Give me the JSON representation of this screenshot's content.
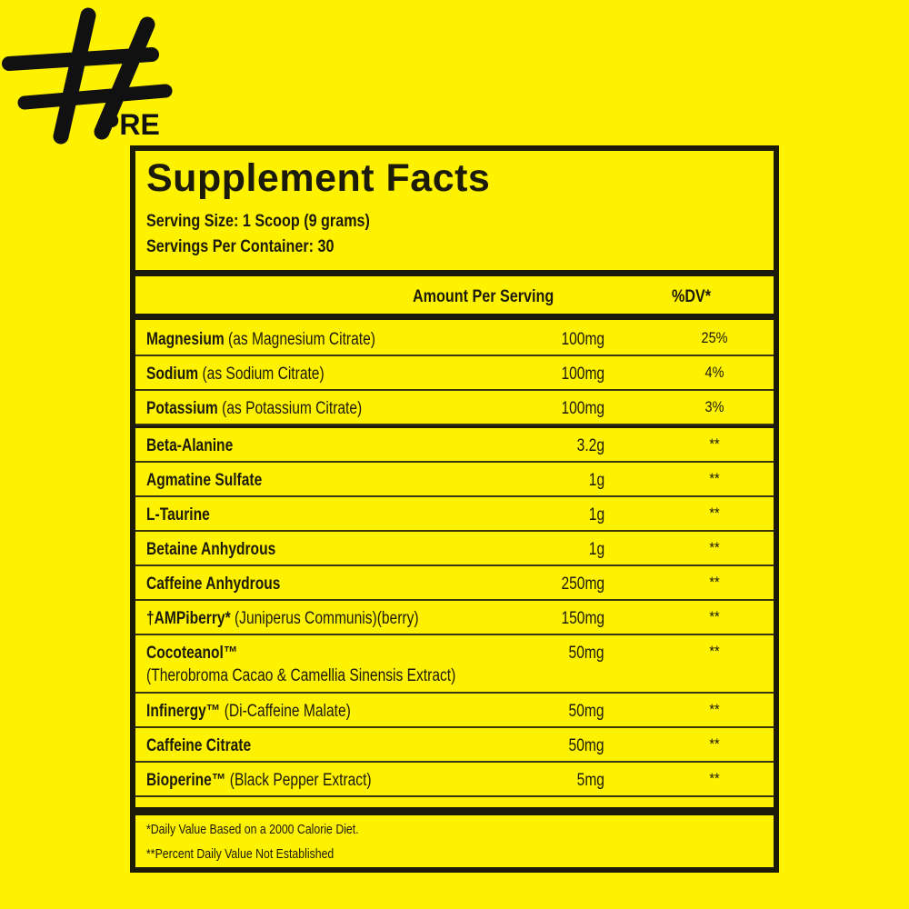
{
  "logo": {
    "text": "#PRE"
  },
  "facts": {
    "title": "Supplement Facts",
    "serving_size": "Serving Size: 1 Scoop (9 grams)",
    "servings_per_container": "Servings Per Container: 30",
    "amount_header": "Amount Per Serving",
    "dv_header": "%DV*",
    "minerals": [
      {
        "name": "Magnesium",
        "detail": "(as Magnesium Citrate)",
        "amount": "100mg",
        "dv": "25%"
      },
      {
        "name": "Sodium",
        "detail": "(as Sodium Citrate)",
        "amount": "100mg",
        "dv": "4%"
      },
      {
        "name": "Potassium",
        "detail": "(as Potassium Citrate)",
        "amount": "100mg",
        "dv": "3%"
      }
    ],
    "ingredients": [
      {
        "name": "Beta-Alanine",
        "detail": "",
        "amount": "3.2g",
        "dv": "**"
      },
      {
        "name": "Agmatine Sulfate",
        "detail": "",
        "amount": "1g",
        "dv": "**"
      },
      {
        "name": "L-Taurine",
        "detail": "",
        "amount": "1g",
        "dv": "**"
      },
      {
        "name": "Betaine Anhydrous",
        "detail": "",
        "amount": "1g",
        "dv": "**"
      },
      {
        "name": "Caffeine Anhydrous",
        "detail": "",
        "amount": "250mg",
        "dv": "**"
      },
      {
        "name": "†AMPiberry*",
        "detail": "(Juniperus Communis)(berry)",
        "amount": "150mg",
        "dv": "**"
      },
      {
        "name": "Cocoteanol™",
        "detail": "(Therobroma Cacao & Camellia Sinensis Extract)",
        "amount": "50mg",
        "dv": "**"
      },
      {
        "name": "Infinergy™",
        "detail": "(Di-Caffeine Malate)",
        "amount": "50mg",
        "dv": "**"
      },
      {
        "name": "Caffeine Citrate",
        "detail": "",
        "amount": "50mg",
        "dv": "**"
      },
      {
        "name": "Bioperine™",
        "detail": "(Black Pepper Extract)",
        "amount": "5mg",
        "dv": "**"
      }
    ],
    "footnote_1": "*Daily Value Based on a 2000 Calorie Diet.",
    "footnote_2": "**Percent Daily Value Not Established"
  }
}
